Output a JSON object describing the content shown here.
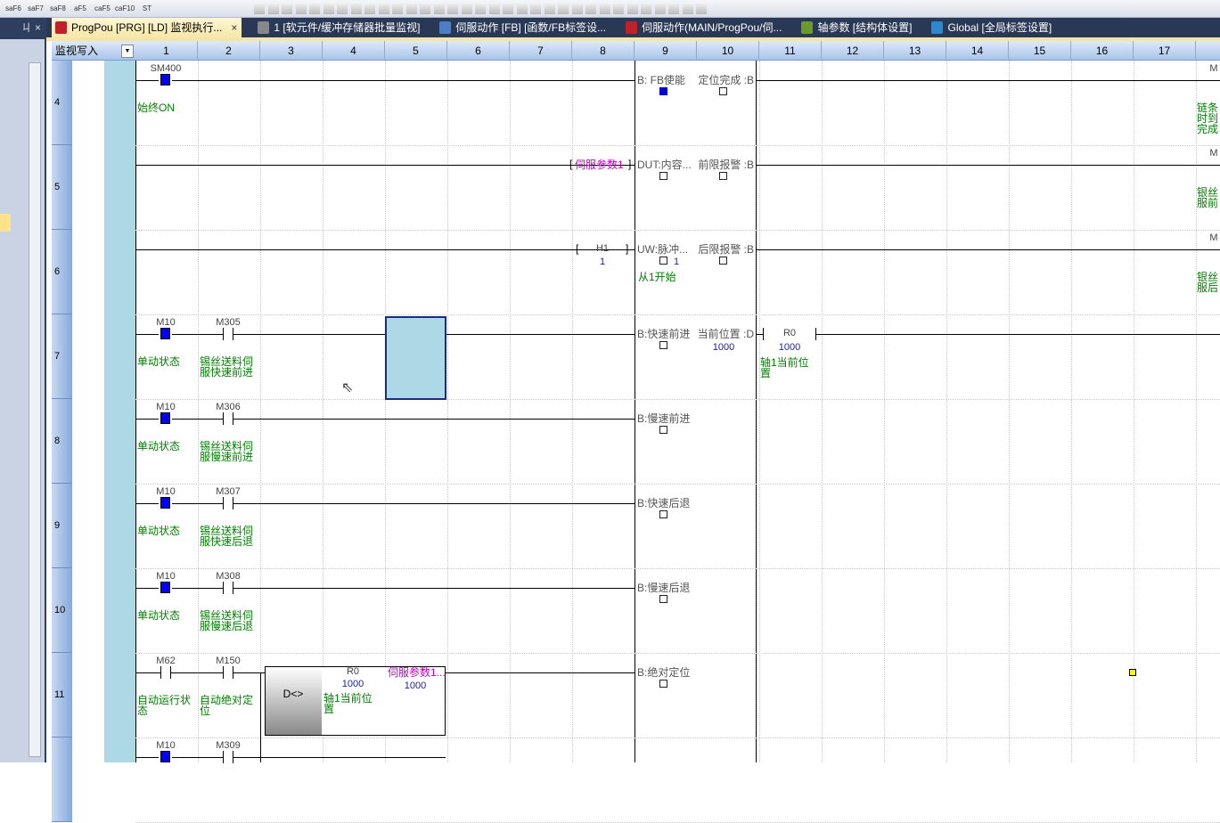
{
  "toolbar": {
    "buttons": [
      "saF6",
      "saF7",
      "saF8",
      "aF5",
      "caF5",
      "caF10",
      "ST"
    ]
  },
  "left_panel": {
    "pin_icon": "ㄐ",
    "close_icon": "×"
  },
  "tabs": [
    {
      "label": "ProgPou [PRG] [LD] 监视执行...",
      "active": true,
      "icon": "ladder-icon",
      "color": "#c0202a"
    },
    {
      "label": "1 [软元件/缓冲存储器批量监视]",
      "icon": "monitor-grid-icon",
      "color": "#888"
    },
    {
      "label": "伺服动作 [FB] [函数/FB标签设...",
      "icon": "fb-label-icon",
      "color": "#4a7fc8"
    },
    {
      "label": "伺服动作(MAIN/ProgPou/伺...",
      "icon": "ladder-icon",
      "color": "#c0202a"
    },
    {
      "label": "轴参数 [结构体设置]",
      "icon": "struct-icon",
      "color": "#6a9a2a"
    },
    {
      "label": "Global [全局标签设置]",
      "icon": "globe-icon",
      "color": "#2a8ad0"
    }
  ],
  "tab_close": "×",
  "grid": {
    "mode": "监视写入",
    "columns": [
      "1",
      "2",
      "3",
      "4",
      "5",
      "6",
      "7",
      "8",
      "9",
      "10",
      "11",
      "12",
      "13",
      "14",
      "15",
      "16",
      "17"
    ]
  },
  "rows": [
    {
      "num": "4",
      "contacts": [
        {
          "dev": "SM400",
          "type": "on",
          "comment": "始终ON"
        }
      ],
      "pinL": "B: FB使能",
      "pinLState": "on",
      "pinR": "定位完成 :B",
      "rightComment": "链条 时到 完成",
      "rightDev": "M"
    },
    {
      "num": "5",
      "input": "伺服参数1",
      "pinL": "DUT:内容...",
      "pinR": "前限报警 :B",
      "rightComment": "银丝 服前",
      "rightDev": "M"
    },
    {
      "num": "6",
      "inputDev": "H1",
      "inputVal": "1",
      "pinL": "UW:脉冲...",
      "pinLVal": "1",
      "pinLComment": "从1开始",
      "pinR": "后限报警 :B",
      "rightComment": "银丝 服后",
      "rightDev": "M"
    },
    {
      "num": "7",
      "contacts": [
        {
          "dev": "M10",
          "type": "on",
          "comment": "单动状态"
        },
        {
          "dev": "M305",
          "type": "no",
          "comment": "锡丝送料伺服快速前进"
        }
      ],
      "pinL": "B:快速前进",
      "pinR": "当前位置 :D",
      "pinRVal": "1000",
      "outDev": "R0",
      "outVal": "1000",
      "outComment": "轴1当前位置"
    },
    {
      "num": "8",
      "contacts": [
        {
          "dev": "M10",
          "type": "on",
          "comment": "单动状态"
        },
        {
          "dev": "M306",
          "type": "no",
          "comment": "锡丝送料伺服慢速前进"
        }
      ],
      "pinL": "B:慢速前进"
    },
    {
      "num": "9",
      "contacts": [
        {
          "dev": "M10",
          "type": "on",
          "comment": "单动状态"
        },
        {
          "dev": "M307",
          "type": "no",
          "comment": "锡丝送料伺服快速后退"
        }
      ],
      "pinL": "B:快速后退"
    },
    {
      "num": "10",
      "contacts": [
        {
          "dev": "M10",
          "type": "on",
          "comment": "单动状态"
        },
        {
          "dev": "M308",
          "type": "no",
          "comment": "锡丝送料伺服慢速后退"
        }
      ],
      "pinL": "B:慢速后退"
    },
    {
      "num": "11",
      "contacts": [
        {
          "dev": "M62",
          "type": "no",
          "comment": "自动运行状态"
        },
        {
          "dev": "M150",
          "type": "no",
          "comment": "自动绝对定位"
        }
      ],
      "pinL": "B:绝对定位",
      "cmp": {
        "op": "D<>",
        "s1": "R0",
        "s1val": "1000",
        "s1cmt": "轴1当前位置",
        "s2": "伺服参数1...",
        "s2val": "1000"
      }
    },
    {
      "num": "",
      "contacts": [
        {
          "dev": "M10",
          "type": "on",
          "comment": ""
        },
        {
          "dev": "M309",
          "type": "no",
          "comment": ""
        }
      ]
    }
  ]
}
